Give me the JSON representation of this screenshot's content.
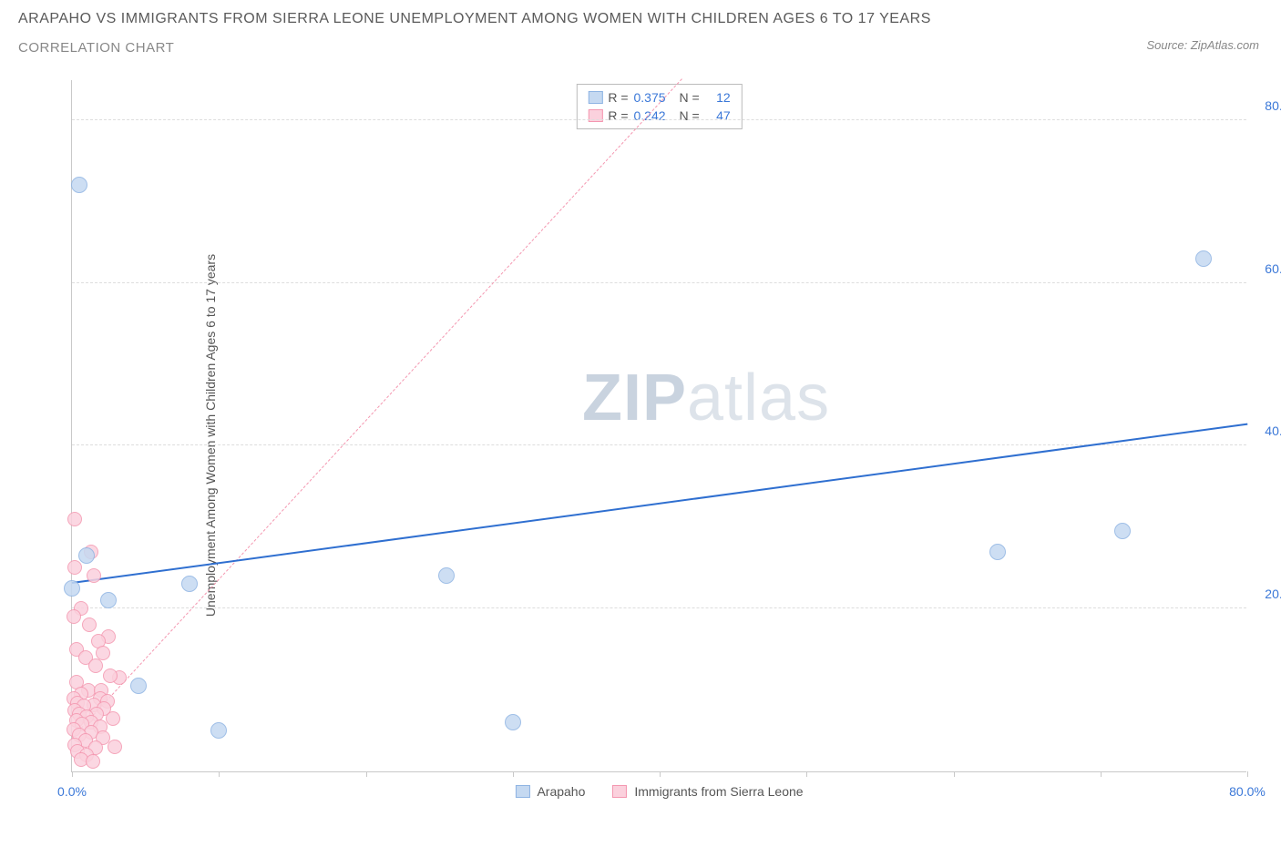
{
  "header": {
    "title_line1": "ARAPAHO VS IMMIGRANTS FROM SIERRA LEONE UNEMPLOYMENT AMONG WOMEN WITH CHILDREN AGES 6 TO 17 YEARS",
    "title_line2": "CORRELATION CHART",
    "source": "Source: ZipAtlas.com"
  },
  "chart": {
    "type": "scatter",
    "y_label": "Unemployment Among Women with Children Ages 6 to 17 years",
    "xlim": [
      0,
      80
    ],
    "ylim": [
      0,
      85
    ],
    "x_ticks": [
      0,
      10,
      20,
      30,
      40,
      50,
      60,
      70,
      80
    ],
    "x_tick_labels": {
      "0": "0.0%",
      "80": "80.0%"
    },
    "y_ticks": [
      20,
      40,
      60,
      80
    ],
    "y_tick_labels": {
      "20": "20.0%",
      "40": "40.0%",
      "60": "60.0%",
      "80": "80.0%"
    },
    "axis_label_color": "#3b78d8",
    "grid_color": "#dddddd",
    "background_color": "#ffffff",
    "watermark": {
      "bold": "ZIP",
      "light": "atlas"
    },
    "series": {
      "arapaho": {
        "label": "Arapaho",
        "fill": "#c5d9f1",
        "stroke": "#8fb4e3",
        "radius": 9,
        "points": [
          [
            0.5,
            72
          ],
          [
            0,
            22.5
          ],
          [
            2.5,
            21
          ],
          [
            8,
            23
          ],
          [
            4.5,
            10.5
          ],
          [
            10,
            5
          ],
          [
            25.5,
            24
          ],
          [
            30,
            6
          ],
          [
            63,
            27
          ],
          [
            71.5,
            29.5
          ],
          [
            77,
            63
          ],
          [
            1,
            26.5
          ]
        ],
        "trend": {
          "y_at_x0": 23,
          "y_at_xmax": 42.5,
          "dash": false,
          "color": "#2f6fd0",
          "width": 2
        }
      },
      "sierra_leone": {
        "label": "Immigrants from Sierra Leone",
        "fill": "#fbd1dd",
        "stroke": "#f497b0",
        "radius": 8,
        "points": [
          [
            0.2,
            31
          ],
          [
            1.3,
            27
          ],
          [
            0.2,
            25
          ],
          [
            1.5,
            24
          ],
          [
            0.6,
            20
          ],
          [
            0.1,
            19
          ],
          [
            2.5,
            16.5
          ],
          [
            1.8,
            16
          ],
          [
            0.3,
            15
          ],
          [
            2.1,
            14.5
          ],
          [
            0.9,
            14
          ],
          [
            1.6,
            13
          ],
          [
            1.2,
            18
          ],
          [
            3.2,
            11.5
          ],
          [
            2.6,
            11.8
          ],
          [
            0.3,
            11
          ],
          [
            1.1,
            10
          ],
          [
            2.0,
            10
          ],
          [
            0.6,
            9.5
          ],
          [
            1.9,
            9
          ],
          [
            0.1,
            9
          ],
          [
            2.4,
            8.6
          ],
          [
            0.4,
            8.4
          ],
          [
            1.5,
            8.2
          ],
          [
            0.8,
            8
          ],
          [
            2.2,
            7.7
          ],
          [
            0.2,
            7.5
          ],
          [
            1.7,
            7.1
          ],
          [
            0.5,
            7
          ],
          [
            1.0,
            6.7
          ],
          [
            2.8,
            6.5
          ],
          [
            0.3,
            6.3
          ],
          [
            1.3,
            6.0
          ],
          [
            0.7,
            5.8
          ],
          [
            1.9,
            5.5
          ],
          [
            0.1,
            5.2
          ],
          [
            1.3,
            4.8
          ],
          [
            0.5,
            4.5
          ],
          [
            2.1,
            4.1
          ],
          [
            0.9,
            3.8
          ],
          [
            0.2,
            3.3
          ],
          [
            1.6,
            2.9
          ],
          [
            0.4,
            2.5
          ],
          [
            1.0,
            2.0
          ],
          [
            0.6,
            1.5
          ],
          [
            2.9,
            3.0
          ],
          [
            1.4,
            1.2
          ]
        ],
        "trend": {
          "y_at_x0": 4,
          "y_at_xmax": 160,
          "dash": true,
          "color": "#f497b0",
          "width": 1
        }
      }
    },
    "legend_top": [
      {
        "swatch_fill": "#c5d9f1",
        "swatch_stroke": "#8fb4e3",
        "r_label": "R =",
        "r": "0.375",
        "n_label": "N =",
        "n": "12"
      },
      {
        "swatch_fill": "#fbd1dd",
        "swatch_stroke": "#f497b0",
        "r_label": "R =",
        "r": "0.242",
        "n_label": "N =",
        "n": "47"
      }
    ]
  }
}
